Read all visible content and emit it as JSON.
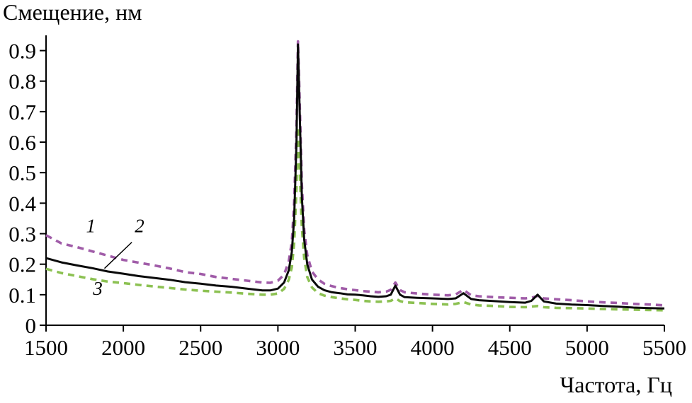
{
  "figure": {
    "y_axis_title": "Смещение, нм",
    "x_axis_title": "Частота, Гц"
  },
  "chart_data": {
    "type": "line",
    "title": "",
    "ylabel": "Смещение, нм",
    "xlabel": "Частота, Гц",
    "xlim": [
      1500,
      5500
    ],
    "ylim": [
      0,
      0.95
    ],
    "grid": false,
    "legend": "inline numeric labels 1, 2, 3 near curves",
    "x_ticks": [
      1500,
      2000,
      2500,
      3000,
      3500,
      4000,
      4500,
      5000,
      5500
    ],
    "y_ticks": [
      0,
      0.1,
      0.2,
      0.3,
      0.4,
      0.5,
      0.6,
      0.7,
      0.8,
      0.9
    ],
    "x": [
      1500,
      1600,
      1700,
      1800,
      1900,
      2000,
      2100,
      2200,
      2300,
      2400,
      2500,
      2600,
      2700,
      2800,
      2900,
      2950,
      3000,
      3040,
      3070,
      3090,
      3105,
      3120,
      3130,
      3140,
      3155,
      3170,
      3190,
      3220,
      3260,
      3300,
      3350,
      3400,
      3450,
      3500,
      3550,
      3600,
      3650,
      3700,
      3730,
      3760,
      3790,
      3820,
      3900,
      4000,
      4100,
      4150,
      4200,
      4250,
      4300,
      4400,
      4500,
      4600,
      4640,
      4680,
      4720,
      4800,
      4900,
      5000,
      5100,
      5200,
      5300,
      5400,
      5500
    ],
    "series": [
      {
        "name": "1",
        "color": "#a05ca8",
        "style": "dashed",
        "values": [
          0.295,
          0.268,
          0.256,
          0.242,
          0.228,
          0.214,
          0.205,
          0.196,
          0.186,
          0.174,
          0.168,
          0.158,
          0.152,
          0.146,
          0.14,
          0.139,
          0.146,
          0.166,
          0.21,
          0.272,
          0.4,
          0.65,
          0.93,
          0.75,
          0.46,
          0.31,
          0.23,
          0.176,
          0.15,
          0.136,
          0.128,
          0.122,
          0.118,
          0.115,
          0.112,
          0.11,
          0.108,
          0.11,
          0.116,
          0.14,
          0.115,
          0.108,
          0.104,
          0.1,
          0.098,
          0.101,
          0.116,
          0.098,
          0.095,
          0.092,
          0.09,
          0.088,
          0.09,
          0.096,
          0.088,
          0.085,
          0.082,
          0.078,
          0.075,
          0.073,
          0.07,
          0.068,
          0.065
        ]
      },
      {
        "name": "2",
        "color": "#0a0a0a",
        "style": "solid",
        "values": [
          0.22,
          0.206,
          0.196,
          0.187,
          0.176,
          0.169,
          0.161,
          0.155,
          0.149,
          0.141,
          0.136,
          0.13,
          0.126,
          0.12,
          0.114,
          0.114,
          0.12,
          0.14,
          0.18,
          0.24,
          0.35,
          0.6,
          0.92,
          0.72,
          0.42,
          0.28,
          0.2,
          0.15,
          0.126,
          0.115,
          0.108,
          0.105,
          0.101,
          0.1,
          0.098,
          0.095,
          0.093,
          0.095,
          0.1,
          0.13,
          0.1,
          0.092,
          0.09,
          0.088,
          0.086,
          0.088,
          0.105,
          0.086,
          0.082,
          0.079,
          0.076,
          0.074,
          0.08,
          0.1,
          0.078,
          0.071,
          0.068,
          0.066,
          0.063,
          0.061,
          0.058,
          0.056,
          0.055
        ]
      },
      {
        "name": "3",
        "color": "#8cc152",
        "style": "dashed",
        "values": [
          0.185,
          0.171,
          0.161,
          0.151,
          0.143,
          0.138,
          0.132,
          0.127,
          0.122,
          0.117,
          0.113,
          0.11,
          0.107,
          0.103,
          0.1,
          0.1,
          0.104,
          0.119,
          0.149,
          0.19,
          0.27,
          0.45,
          0.65,
          0.52,
          0.32,
          0.22,
          0.158,
          0.124,
          0.105,
          0.097,
          0.092,
          0.088,
          0.085,
          0.083,
          0.08,
          0.078,
          0.077,
          0.078,
          0.08,
          0.088,
          0.079,
          0.075,
          0.073,
          0.07,
          0.068,
          0.07,
          0.076,
          0.068,
          0.065,
          0.063,
          0.06,
          0.059,
          0.061,
          0.063,
          0.059,
          0.057,
          0.056,
          0.055,
          0.053,
          0.052,
          0.051,
          0.05,
          0.049
        ]
      }
    ],
    "annotations": [
      {
        "label": "1",
        "x": 1790,
        "y": 0.305
      },
      {
        "label": "2",
        "x": 2105,
        "y": 0.305,
        "leader": {
          "x1": 2055,
          "y1": 0.272,
          "x2": 1878,
          "y2": 0.186
        }
      },
      {
        "label": "3",
        "x": 1835,
        "y": 0.1
      }
    ]
  }
}
